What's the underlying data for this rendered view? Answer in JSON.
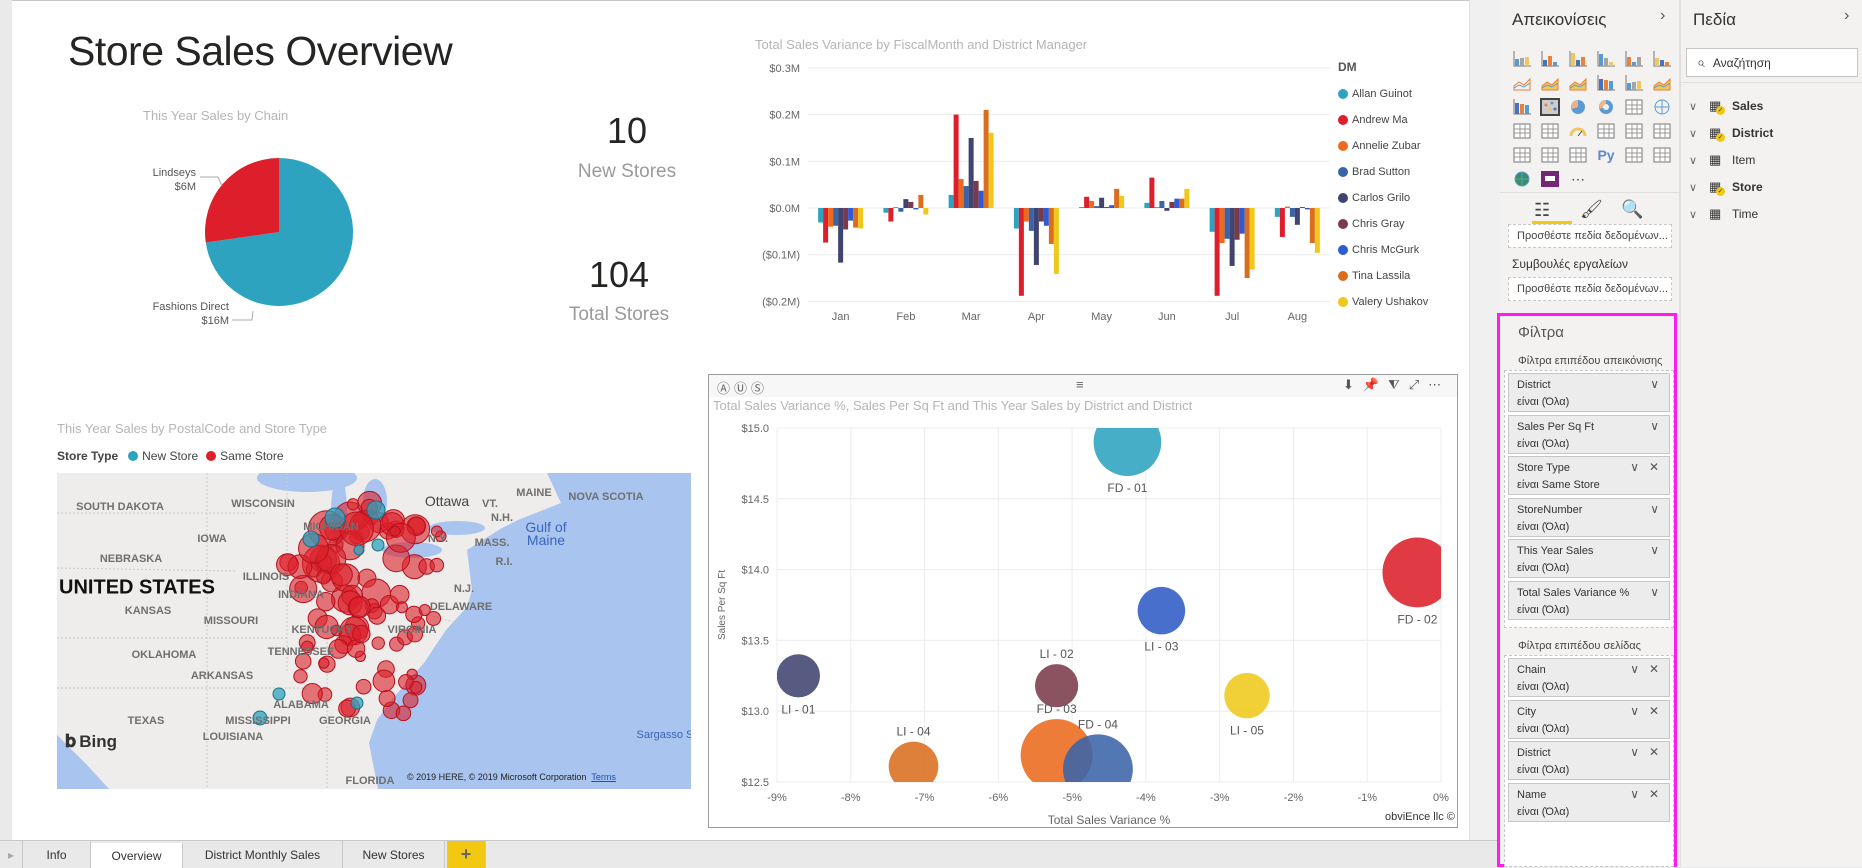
{
  "page": {
    "title": "Store Sales Overview"
  },
  "pie": {
    "chart_data": {
      "type": "pie",
      "title": "This Year Sales by Chain",
      "slices": [
        {
          "label": "Lindseys",
          "value": 6,
          "value_label": "$6M",
          "color": "#dc1f2a"
        },
        {
          "label": "Fashions Direct",
          "value": 16,
          "value_label": "$16M",
          "color": "#2ea3bf"
        }
      ]
    }
  },
  "cards": [
    {
      "value": "10",
      "label": "New Stores"
    },
    {
      "value": "104",
      "label": "Total Stores"
    }
  ],
  "chart_data": [
    {
      "type": "bar",
      "title": "Total Sales Variance by FiscalMonth and District Manager",
      "categories": [
        "Jan",
        "Feb",
        "Mar",
        "Apr",
        "May",
        "Jun",
        "Jul",
        "Aug"
      ],
      "ylim": [
        -0.2,
        0.3
      ],
      "yticks": [
        0.3,
        0.2,
        0.1,
        0.0,
        -0.1,
        -0.2
      ],
      "ytick_labels": [
        "$0.3M",
        "$0.2M",
        "$0.1M",
        "$0.0M",
        "($0.1M)",
        "($0.2M)"
      ],
      "grid": true,
      "legend_title": "DM",
      "legend_position": "right",
      "series": [
        {
          "name": "Allan Guinot",
          "color": "#2ea3bf",
          "values": [
            -0.031,
            -0.01,
            0.028,
            -0.044,
            0.002,
            0.011,
            -0.051,
            -0.019
          ]
        },
        {
          "name": "Andrew Ma",
          "color": "#dc1f2a",
          "values": [
            -0.074,
            -0.029,
            0.2,
            -0.188,
            0.024,
            0.065,
            -0.188,
            -0.062
          ]
        },
        {
          "name": "Annelie Zubar",
          "color": "#ec6a1e",
          "values": [
            -0.04,
            0.002,
            0.062,
            -0.029,
            0.015,
            0.002,
            -0.075,
            0.003
          ]
        },
        {
          "name": "Brad Sutton",
          "color": "#3a64a8",
          "values": [
            -0.038,
            -0.008,
            0.047,
            -0.049,
            0.004,
            0.015,
            -0.066,
            -0.019
          ]
        },
        {
          "name": "Carlos Grilo",
          "color": "#414470",
          "values": [
            -0.117,
            0.019,
            0.15,
            -0.122,
            0.022,
            -0.006,
            -0.124,
            -0.036
          ]
        },
        {
          "name": "Chris Gray",
          "color": "#7b3a4a",
          "values": [
            -0.046,
            0.013,
            0.058,
            -0.029,
            0.002,
            0.013,
            -0.068,
            0.002
          ]
        },
        {
          "name": "Chris McGurk",
          "color": "#2e5bd4",
          "values": [
            -0.027,
            -0.003,
            0.037,
            -0.038,
            0.006,
            0.02,
            -0.055,
            -0.003
          ]
        },
        {
          "name": "Tina Lassila",
          "color": "#d96e1f",
          "values": [
            -0.042,
            0.028,
            0.21,
            -0.077,
            0.041,
            0.02,
            -0.15,
            -0.075
          ]
        },
        {
          "name": "Valery Ushakov",
          "color": "#efc81a",
          "values": [
            -0.044,
            -0.014,
            0.161,
            -0.141,
            0.026,
            0.041,
            -0.132,
            -0.096
          ]
        }
      ]
    },
    {
      "type": "scatter",
      "title": "Total Sales Variance %, Sales Per Sq Ft and This Year Sales by District and District",
      "xlabel": "Total Sales Variance %",
      "ylabel": "Sales Per Sq Ft",
      "xlim": [
        -9,
        0
      ],
      "ylim": [
        12.5,
        15.0
      ],
      "xticks": [
        -9,
        -8,
        -7,
        -6,
        -5,
        -4,
        -3,
        -2,
        -1,
        0
      ],
      "xtick_labels": [
        "-9%",
        "-8%",
        "-7%",
        "-6%",
        "-5%",
        "-4%",
        "-3%",
        "-2%",
        "-1%",
        "0%"
      ],
      "yticks": [
        15.0,
        14.5,
        14.0,
        13.5,
        13.0,
        12.5
      ],
      "ytick_labels": [
        "$15.0",
        "$14.5",
        "$14.0",
        "$13.5",
        "$13.0",
        "$12.5"
      ],
      "grid": true,
      "points": [
        {
          "label": "FD - 01",
          "x": -4.25,
          "y": 14.9,
          "size": 0.94,
          "color": "#2ea3bf",
          "label_side": "below"
        },
        {
          "label": "FD - 02",
          "x": -0.32,
          "y": 13.98,
          "size": 0.97,
          "color": "#dc1f2a",
          "label_side": "below"
        },
        {
          "label": "LI - 03",
          "x": -3.79,
          "y": 13.71,
          "size": 0.66,
          "color": "#2e5bc4",
          "label_side": "below"
        },
        {
          "label": "LI - 02",
          "x": -5.21,
          "y": 13.18,
          "size": 0.6,
          "color": "#7b3a4a",
          "label_side": "above"
        },
        {
          "label": "LI - 01",
          "x": -8.71,
          "y": 13.25,
          "size": 0.6,
          "color": "#414470",
          "label_side": "below"
        },
        {
          "label": "LI - 05",
          "x": -2.63,
          "y": 13.11,
          "size": 0.63,
          "color": "#efc81a",
          "label_side": "below"
        },
        {
          "label": "LI - 04",
          "x": -7.15,
          "y": 12.61,
          "size": 0.69,
          "color": "#d96e1f",
          "label_side": "above"
        },
        {
          "label": "FD - 03",
          "x": -5.21,
          "y": 12.69,
          "size": 1.0,
          "color": "#ec6a1e",
          "label_side": "above"
        },
        {
          "label": "FD - 04",
          "x": -4.65,
          "y": 12.59,
          "size": 0.97,
          "color": "#3a64a8",
          "label_side": "above"
        }
      ],
      "credit": "obviEnce llc ©"
    }
  ],
  "map": {
    "title": "This Year Sales by PostalCode and Store Type",
    "legend_title": "Store Type",
    "legend": [
      {
        "label": "New Store",
        "color": "#2ea3bf"
      },
      {
        "label": "Same Store",
        "color": "#dc1f2a"
      }
    ],
    "country_label": "UNITED STATES",
    "place_labels": [
      "SOUTH DAKOTA",
      "WISCONSIN",
      "MICHIGAN",
      "IOWA",
      "NEBRASKA",
      "ILLINOIS",
      "KANSAS",
      "INDIANA",
      "MISSOURI",
      "KENTUCKY",
      "OKLAHOMA",
      "TENNESSEE",
      "ARKANSAS",
      "ALABAMA",
      "TEXAS",
      "MISSISSIPPI",
      "GEORGIA",
      "LOUISIANA",
      "FLORIDA",
      "Ottawa",
      "VT.",
      "N.H.",
      "MAINE",
      "NOVA SCOTIA",
      "N.Y.",
      "MASS.",
      "R.I.",
      "N.J.",
      "DELAWARE",
      "VIRGINIA"
    ],
    "water_labels": [
      "Gulf of",
      "Maine",
      "Sargasso Se"
    ],
    "logo": "Bing",
    "copyright": "© 2019 HERE, © 2019 Microsoft Corporation",
    "terms": "Terms"
  },
  "tabs": {
    "items": [
      "Info",
      "Overview",
      "District Monthly Sales",
      "New Stores"
    ],
    "active": "Overview",
    "add": "+"
  },
  "viz_pane": {
    "title": "Απεικονίσεις",
    "icons": [
      "stacked-bar",
      "stacked-column",
      "clustered-bar",
      "clustered-column",
      "100-stacked-bar",
      "100-stacked-column",
      "line",
      "area",
      "stacked-area",
      "line-stacked-column",
      "line-clustered-column",
      "ribbon",
      "waterfall",
      "scatter",
      "pie",
      "donut",
      "treemap",
      "map",
      "filled-map",
      "funnel",
      "gauge",
      "card",
      "multi-row-card",
      "kpi",
      "slicer",
      "table",
      "matrix",
      "python",
      "key-influencers",
      "qa",
      "arcgis",
      "custom-visual",
      "more"
    ],
    "selected_icon": "scatter",
    "well_placeholder": "Προσθέστε πεδία δεδομένων...",
    "tooltips_label": "Συμβουλές εργαλείων",
    "tooltips_placeholder": "Προσθέστε πεδία δεδομένων..."
  },
  "fields_pane": {
    "title": "Πεδία",
    "search_placeholder": "Αναζήτηση",
    "tables": [
      {
        "name": "Sales",
        "checked": true
      },
      {
        "name": "District",
        "checked": true
      },
      {
        "name": "Item",
        "checked": false
      },
      {
        "name": "Store",
        "checked": true
      },
      {
        "name": "Time",
        "checked": false
      }
    ]
  },
  "filters": {
    "title": "Φίλτρα",
    "visual_level_label": "Φίλτρα επιπέδου απεικόνισης",
    "visual_level": [
      {
        "field": "District",
        "value": "είναι  (Όλα)",
        "removable": false
      },
      {
        "field": "Sales Per Sq Ft",
        "value": "είναι  (Όλα)",
        "removable": false
      },
      {
        "field": "Store Type",
        "value": "είναι Same Store",
        "removable": true
      },
      {
        "field": "StoreNumber",
        "value": "είναι  (Όλα)",
        "removable": false
      },
      {
        "field": "This Year Sales",
        "value": "είναι  (Όλα)",
        "removable": false
      },
      {
        "field": "Total Sales Variance %",
        "value": "είναι  (Όλα)",
        "removable": false
      }
    ],
    "page_level_label": "Φίλτρα επιπέδου σελίδας",
    "page_level": [
      {
        "field": "Chain",
        "value": "είναι (Όλα)",
        "removable": true
      },
      {
        "field": "City",
        "value": "είναι (Όλα)",
        "removable": true
      },
      {
        "field": "District",
        "value": "είναι (Όλα)",
        "removable": true
      },
      {
        "field": "Name",
        "value": "είναι (Όλα)",
        "removable": true
      }
    ]
  }
}
